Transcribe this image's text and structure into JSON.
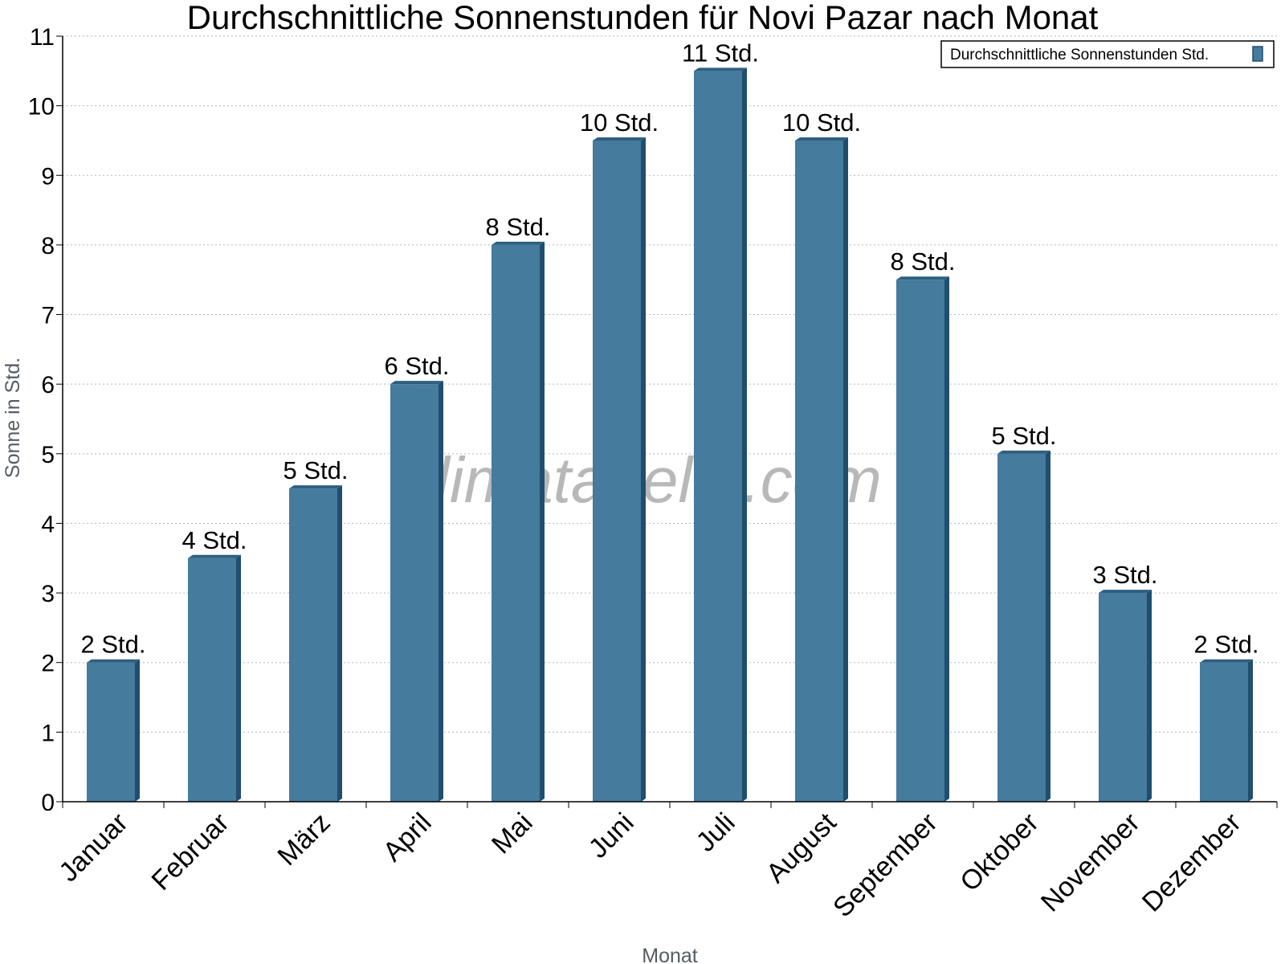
{
  "chart_data": {
    "type": "bar",
    "title": "Durchschnittliche Sonnenstunden für Novi Pazar nach Monat",
    "xlabel": "Monat",
    "ylabel": "Sonne in Std.",
    "ylim": [
      0,
      11
    ],
    "yticks": [
      "0",
      "1",
      "2",
      "3",
      "4",
      "5",
      "6",
      "7",
      "8",
      "9",
      "10",
      "11"
    ],
    "grid": true,
    "legend_position": "top-right",
    "categories": [
      "Januar",
      "Februar",
      "März",
      "April",
      "Mai",
      "Juni",
      "Juli",
      "August",
      "September",
      "Oktober",
      "November",
      "Dezember"
    ],
    "series": [
      {
        "name": "Durchschnittliche Sonnenstunden Std.",
        "values": [
          2,
          3.5,
          4.5,
          6,
          8,
          9.5,
          10.5,
          9.5,
          7.5,
          5,
          3,
          2
        ],
        "labels": [
          "2 Std.",
          "4 Std.",
          "5 Std.",
          "6 Std.",
          "8 Std.",
          "10 Std.",
          "11 Std.",
          "10 Std.",
          "8 Std.",
          "5 Std.",
          "3 Std.",
          "2 Std."
        ],
        "color": "#457b9d",
        "side_color": "#1f4e6e",
        "top_color": "#2d5f80"
      }
    ],
    "watermark": "klimatabelle.com"
  }
}
